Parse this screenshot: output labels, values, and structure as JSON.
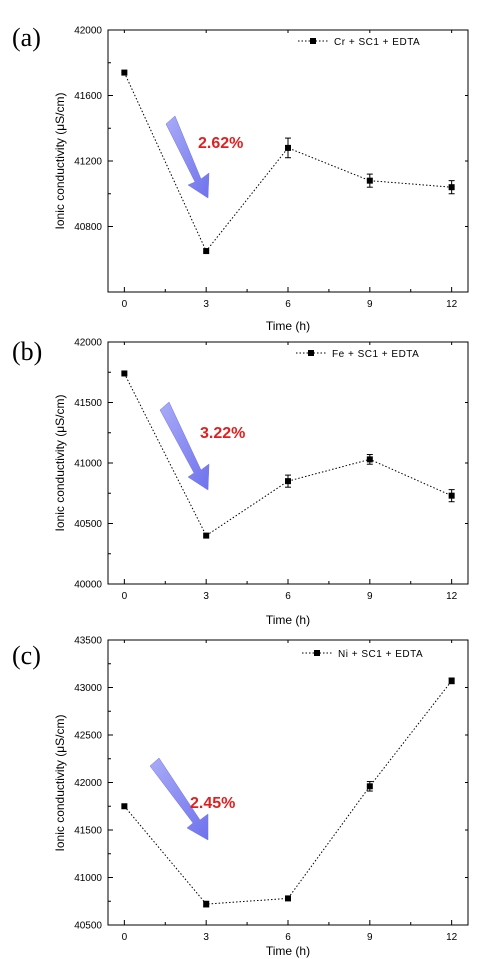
{
  "chart_data": [
    {
      "type": "line",
      "panel_label": "(a)",
      "xlabel": "Time (h)",
      "ylabel": "Ionic conductivity (μS/cm)",
      "x": [
        0,
        3,
        6,
        9,
        12
      ],
      "xticks": [
        "0",
        "3",
        "6",
        "9",
        "12"
      ],
      "xlim": [
        -0.6,
        12.6
      ],
      "ylim": [
        40400,
        42000
      ],
      "yticks": [
        "40800",
        "41200",
        "41600",
        "42000"
      ],
      "series": [
        {
          "name": "Cr + SC1 + EDTA",
          "values": [
            41740,
            40650,
            41280,
            41080,
            41040
          ],
          "errors": [
            0,
            0,
            60,
            40,
            40
          ]
        }
      ],
      "annotation": {
        "text": "2.62%",
        "color": "#e02020"
      },
      "arrow_color": "#7b7ef0",
      "legend_position": "top-right"
    },
    {
      "type": "line",
      "panel_label": "(b)",
      "xlabel": "Time (h)",
      "ylabel": "Ionic conductivity (μS/cm)",
      "x": [
        0,
        3,
        6,
        9,
        12
      ],
      "xticks": [
        "0",
        "3",
        "6",
        "9",
        "12"
      ],
      "xlim": [
        -0.6,
        12.6
      ],
      "ylim": [
        40000,
        42000
      ],
      "yticks": [
        "40000",
        "40500",
        "41000",
        "41500",
        "42000"
      ],
      "series": [
        {
          "name": "Fe + SC1 + EDTA",
          "values": [
            41740,
            40400,
            40850,
            41030,
            40730
          ],
          "errors": [
            0,
            0,
            50,
            40,
            50
          ]
        }
      ],
      "annotation": {
        "text": "3.22%",
        "color": "#e02020"
      },
      "arrow_color": "#7b7ef0",
      "legend_position": "top-right"
    },
    {
      "type": "line",
      "panel_label": "(c)",
      "xlabel": "Time (h)",
      "ylabel": "Ionic conductivity (μS/cm)",
      "x": [
        0,
        3,
        6,
        9,
        12
      ],
      "xticks": [
        "0",
        "3",
        "6",
        "9",
        "12"
      ],
      "xlim": [
        -0.6,
        12.6
      ],
      "ylim": [
        40500,
        43500
      ],
      "yticks": [
        "40500",
        "41000",
        "41500",
        "42000",
        "42500",
        "43000",
        "43500"
      ],
      "series": [
        {
          "name": "Ni + SC1 + EDTA",
          "values": [
            41750,
            40720,
            40780,
            41960,
            43070
          ],
          "errors": [
            0,
            30,
            0,
            50,
            30
          ]
        }
      ],
      "annotation": {
        "text": "2.45%",
        "color": "#e02020"
      },
      "arrow_color": "#7b7ef0",
      "legend_position": "top-right"
    }
  ]
}
